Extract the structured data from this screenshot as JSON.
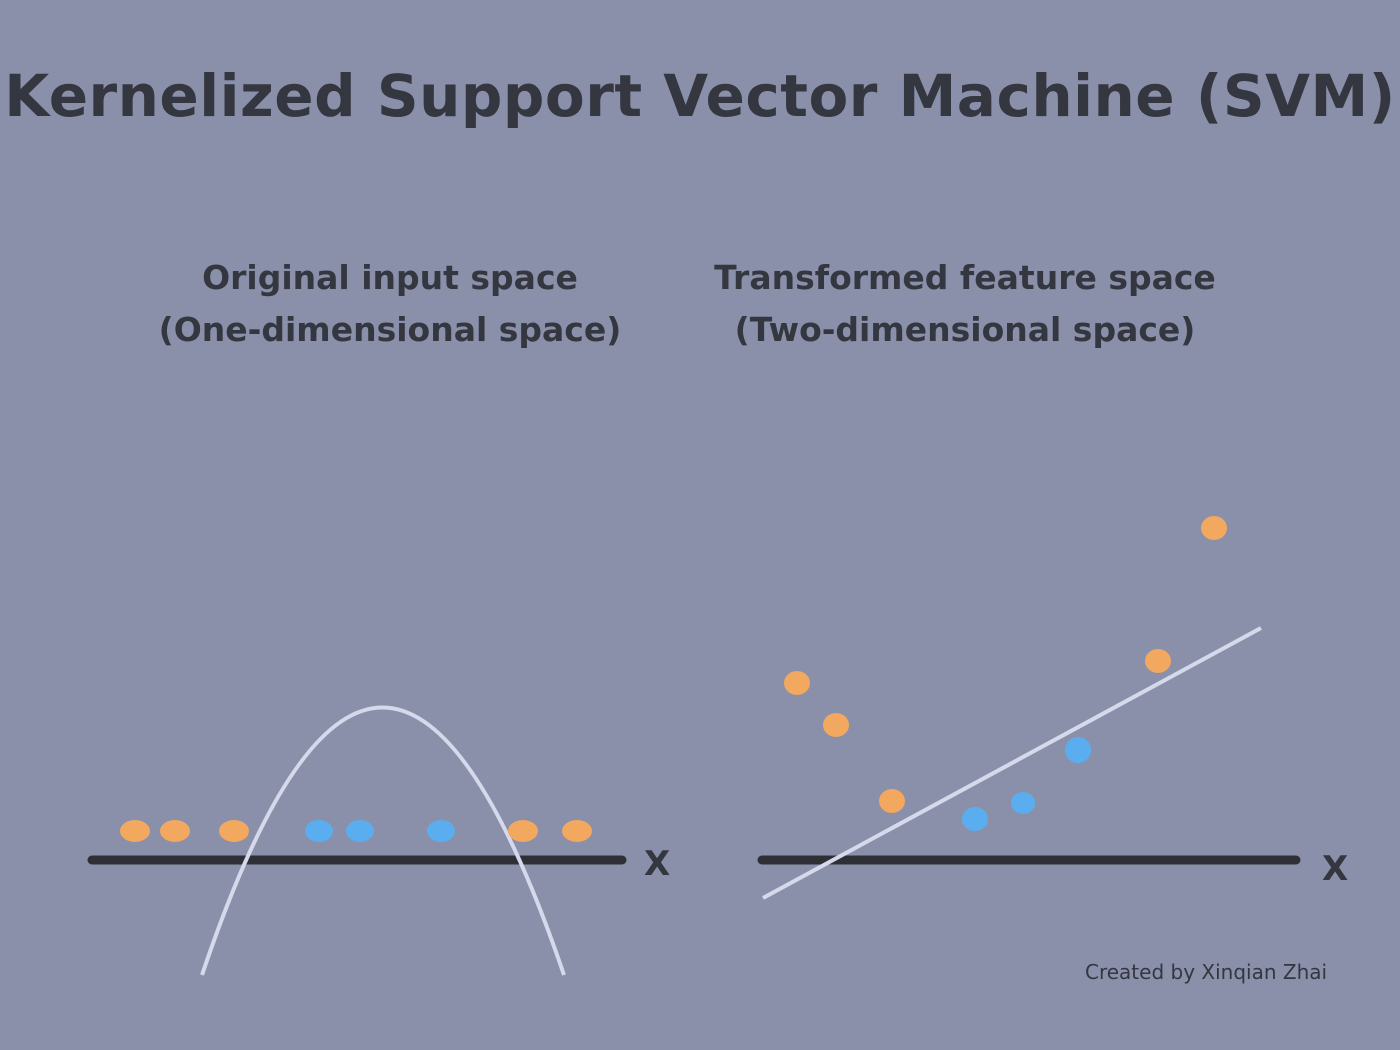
{
  "title": "Kernelized Support Vector Machine (SVM)",
  "left_panel": {
    "title_line1": "Original input space",
    "title_line2": "(One-dimensional space)",
    "axis_label": "X"
  },
  "right_panel": {
    "title_line1": "Transformed feature space",
    "title_line2": "(Two-dimensional space)",
    "axis_label": "X"
  },
  "credit": "Created by Xinqian Zhai",
  "colors": {
    "background": "#8a90aa",
    "class_a_orange": "#f2a85e",
    "class_b_blue": "#5aaef0",
    "axis": "#2f3036",
    "boundary": "#d6d9ec",
    "text": "#343640"
  }
}
